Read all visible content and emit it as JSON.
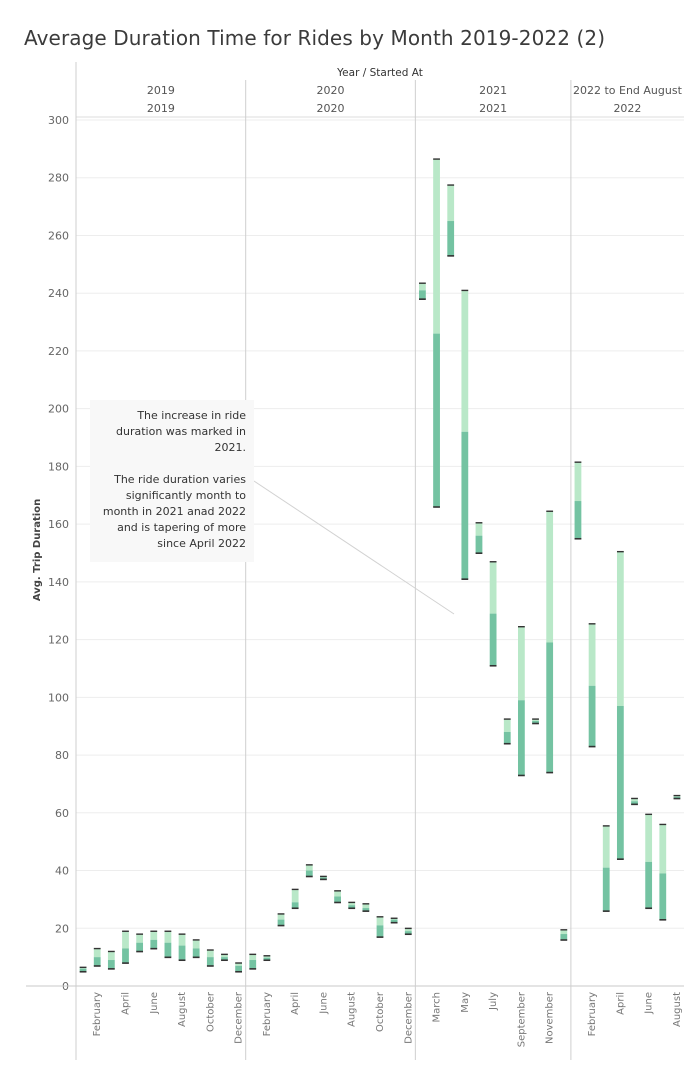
{
  "title": "Average Duration Time for Rides by Month 2019-2022 (2)",
  "annotation": {
    "line1": "The increase in ride duration was marked in 2021.",
    "line2": "The ride duration varies significantly month to month in 2021 anad 2022 and is tapering of more since April 2022"
  },
  "colors": {
    "light": "#b9e8c8",
    "dark": "#74c3a2",
    "cap": "#333333",
    "grid": "#ededed",
    "divider": "#cfcfcf"
  },
  "chart_data": {
    "type": "bar",
    "subtype": "floating-range-bars",
    "title": "Average Duration Time for Rides by Month 2019-2022 (2)",
    "column_header": "Year  /  Started At",
    "ylabel": "Avg. Trip Duration",
    "ylim": [
      0,
      300
    ],
    "yticks": [
      0,
      20,
      40,
      60,
      80,
      100,
      120,
      140,
      160,
      180,
      200,
      220,
      240,
      260,
      280,
      300
    ],
    "grid": true,
    "panels": [
      {
        "header_top": "2019",
        "header_bottom": "2019",
        "months": [
          "January",
          "February",
          "March",
          "April",
          "May",
          "June",
          "July",
          "August",
          "September",
          "October",
          "November",
          "December"
        ],
        "visible_tick_labels": [
          "February",
          "April",
          "June",
          "August",
          "October",
          "December"
        ],
        "bars": [
          {
            "low": 5,
            "mid": 6,
            "high": 6.5
          },
          {
            "low": 7,
            "mid": 10,
            "high": 13
          },
          {
            "low": 6,
            "mid": 9,
            "high": 12
          },
          {
            "low": 8,
            "mid": 13,
            "high": 19
          },
          {
            "low": 12,
            "mid": 15,
            "high": 18
          },
          {
            "low": 13,
            "mid": 16,
            "high": 19
          },
          {
            "low": 10,
            "mid": 15,
            "high": 19
          },
          {
            "low": 9,
            "mid": 14,
            "high": 18
          },
          {
            "low": 10,
            "mid": 13,
            "high": 16
          },
          {
            "low": 7,
            "mid": 10,
            "high": 12.5
          },
          {
            "low": 9,
            "mid": 10,
            "high": 11
          },
          {
            "low": 5,
            "mid": 7,
            "high": 8
          }
        ]
      },
      {
        "header_top": "2020",
        "header_bottom": "2020",
        "months": [
          "January",
          "February",
          "March",
          "April",
          "May",
          "June",
          "July",
          "August",
          "September",
          "October",
          "November",
          "December"
        ],
        "visible_tick_labels": [
          "February",
          "April",
          "June",
          "August",
          "October",
          "December"
        ],
        "bars": [
          {
            "low": 6,
            "mid": 9,
            "high": 11
          },
          {
            "low": 9,
            "mid": 9.8,
            "high": 10.5
          },
          {
            "low": 21,
            "mid": 23,
            "high": 25
          },
          {
            "low": 27,
            "mid": 29,
            "high": 33.5
          },
          {
            "low": 38,
            "mid": 40,
            "high": 42
          },
          {
            "low": 37,
            "mid": 37.6,
            "high": 38
          },
          {
            "low": 29,
            "mid": 31,
            "high": 33
          },
          {
            "low": 27,
            "mid": 28,
            "high": 29
          },
          {
            "low": 26,
            "mid": 27,
            "high": 28.5
          },
          {
            "low": 17,
            "mid": 21,
            "high": 24
          },
          {
            "low": 22,
            "mid": 23,
            "high": 23.5
          },
          {
            "low": 18,
            "mid": 19,
            "high": 20
          }
        ]
      },
      {
        "header_top": "2021",
        "header_bottom": "2021",
        "months": [
          "February",
          "March",
          "April",
          "May",
          "June",
          "July",
          "August",
          "September",
          "October",
          "November",
          "December"
        ],
        "visible_tick_labels": [
          "March",
          "May",
          "July",
          "September",
          "November"
        ],
        "bars": [
          {
            "low": 238,
            "mid": 241,
            "high": 243.5
          },
          {
            "low": 166,
            "mid": 226,
            "high": 286.5
          },
          {
            "low": 253,
            "mid": 265,
            "high": 277.5
          },
          {
            "low": 141,
            "mid": 192,
            "high": 241
          },
          {
            "low": 150,
            "mid": 156,
            "high": 160.5
          },
          {
            "low": 111,
            "mid": 129,
            "high": 147
          },
          {
            "low": 84,
            "mid": 88,
            "high": 92.5
          },
          {
            "low": 73,
            "mid": 99,
            "high": 124.5
          },
          {
            "low": 91,
            "mid": 91.8,
            "high": 92.5
          },
          {
            "low": 74,
            "mid": 119,
            "high": 164.5
          },
          {
            "low": 16,
            "mid": 18,
            "high": 19.5
          }
        ]
      },
      {
        "header_top": "2022 to End August",
        "header_bottom": "2022",
        "months": [
          "January",
          "February",
          "March",
          "April",
          "May",
          "June",
          "July",
          "August"
        ],
        "visible_tick_labels": [
          "February",
          "April",
          "June",
          "August"
        ],
        "bars": [
          {
            "low": 155,
            "mid": 168,
            "high": 181.5
          },
          {
            "low": 83,
            "mid": 104,
            "high": 125.5
          },
          {
            "low": 26,
            "mid": 41,
            "high": 55.5
          },
          {
            "low": 44,
            "mid": 97,
            "high": 150.5
          },
          {
            "low": 63,
            "mid": 64,
            "high": 65
          },
          {
            "low": 27,
            "mid": 43,
            "high": 59.5
          },
          {
            "low": 23,
            "mid": 39,
            "high": 56
          },
          {
            "low": 65,
            "mid": 65.5,
            "high": 66
          }
        ]
      }
    ]
  }
}
